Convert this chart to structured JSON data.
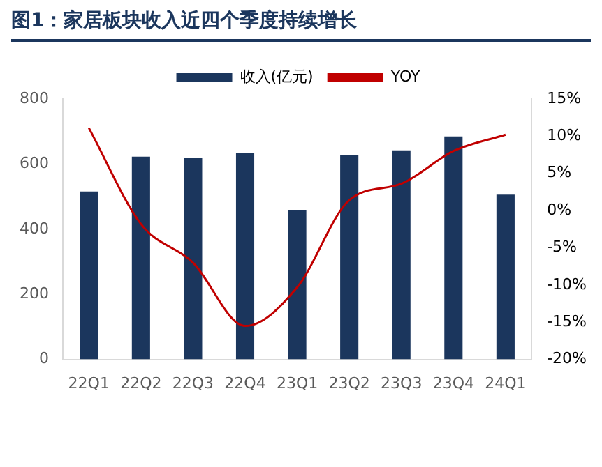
{
  "chart_data": {
    "type": "bar",
    "title": "图1：家居板块收入近四个季度持续增长",
    "categories": [
      "22Q1",
      "22Q2",
      "22Q3",
      "22Q4",
      "23Q1",
      "23Q2",
      "23Q3",
      "23Q4",
      "24Q1"
    ],
    "series": [
      {
        "name": "收入(亿元)",
        "color": "#1b365d",
        "values": [
          516,
          623,
          618,
          634,
          458,
          628,
          642,
          685,
          506
        ]
      },
      {
        "name": "YOY",
        "type": "line",
        "axis": "y2",
        "color": "#c00000",
        "values": [
          11.1,
          -1.8,
          -7.0,
          -15.5,
          -10.3,
          1.4,
          3.6,
          8.0,
          10.2
        ]
      }
    ],
    "ylim": [
      0,
      800
    ],
    "yticks": [
      0,
      200,
      400,
      600,
      800
    ],
    "y2lim": [
      -20,
      15
    ],
    "y2ticks": [
      {
        "value": -20,
        "label": "-20%"
      },
      {
        "value": -15,
        "label": "-15%"
      },
      {
        "value": -10,
        "label": "-10%"
      },
      {
        "value": -5,
        "label": "-5%"
      },
      {
        "value": 0,
        "label": "0%"
      },
      {
        "value": 5,
        "label": "5%"
      },
      {
        "value": 10,
        "label": "10%"
      },
      {
        "value": 15,
        "label": "15%"
      }
    ],
    "grid": false,
    "legend": "top",
    "marker": "none",
    "line_style": "solid"
  }
}
